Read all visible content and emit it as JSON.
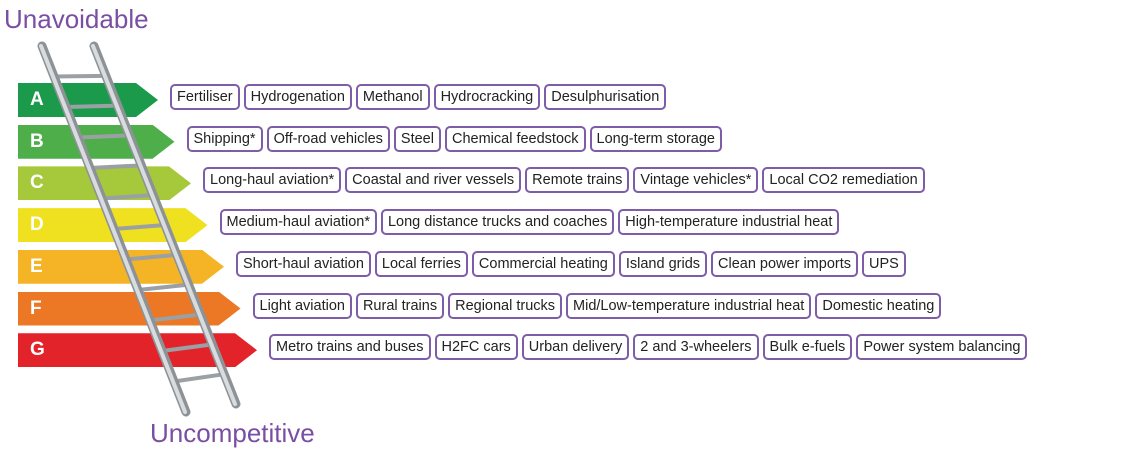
{
  "labels": {
    "top": "Unavoidable",
    "bottom": "Uncompetitive"
  },
  "rows": [
    {
      "grade": "A",
      "color": "#1b9a4b",
      "items": [
        "Fertiliser",
        "Hydrogenation",
        "Methanol",
        "Hydrocracking",
        "Desulphurisation"
      ]
    },
    {
      "grade": "B",
      "color": "#4eae4a",
      "items": [
        "Shipping*",
        "Off-road vehicles",
        "Steel",
        "Chemical feedstock",
        "Long-term storage"
      ]
    },
    {
      "grade": "C",
      "color": "#a6c83b",
      "items": [
        "Long-haul aviation*",
        "Coastal and river vessels",
        "Remote trains",
        "Vintage vehicles*",
        "Local CO2 remediation"
      ]
    },
    {
      "grade": "D",
      "color": "#efe11f",
      "items": [
        "Medium-haul aviation*",
        "Long distance trucks and coaches",
        "High-temperature industrial heat"
      ]
    },
    {
      "grade": "E",
      "color": "#f5b426",
      "items": [
        "Short-haul aviation",
        "Local ferries",
        "Commercial heating",
        "Island grids",
        "Clean power imports",
        "UPS"
      ]
    },
    {
      "grade": "F",
      "color": "#ec7826",
      "items": [
        "Light aviation",
        "Rural trains",
        "Regional trucks",
        "Mid/Low-temperature industrial heat",
        "Domestic heating"
      ]
    },
    {
      "grade": "G",
      "color": "#e3232a",
      "items": [
        "Metro trains and buses",
        "H2FC cars",
        "Urban delivery",
        "2 and 3-wheelers",
        "Bulk e-fuels",
        "Power system balancing"
      ]
    }
  ]
}
